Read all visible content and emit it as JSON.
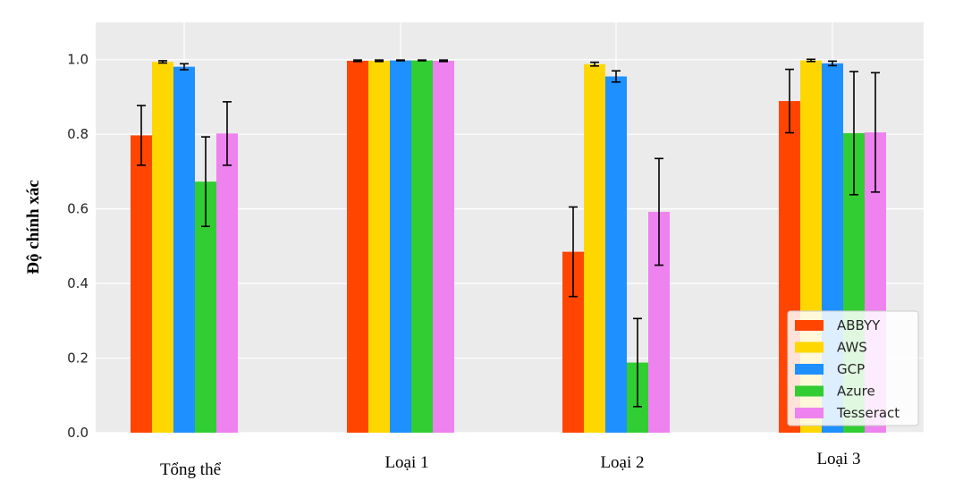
{
  "chart_data": {
    "type": "bar",
    "title": "",
    "xlabel": "",
    "ylabel": "Độ chính xác",
    "categories": [
      "Tổng thể",
      "Loại 1",
      "Loại 2",
      "Loại 3"
    ],
    "ylim": [
      0,
      1.1
    ],
    "yticks": [
      "0.0",
      "0.2",
      "0.4",
      "0.6",
      "0.8",
      "1.0"
    ],
    "grid": true,
    "legend_position": "bottom-right",
    "series": [
      {
        "name": "ABBYY",
        "color": "#ff4500",
        "values": [
          0.797,
          0.997,
          0.485,
          0.889
        ],
        "errors": [
          0.08,
          0.002,
          0.12,
          0.085
        ]
      },
      {
        "name": "AWS",
        "color": "#ffd700",
        "values": [
          0.994,
          0.997,
          0.988,
          0.998
        ],
        "errors": [
          0.003,
          0.002,
          0.005,
          0.003
        ]
      },
      {
        "name": "GCP",
        "color": "#1e90ff",
        "values": [
          0.981,
          0.998,
          0.955,
          0.99
        ],
        "errors": [
          0.008,
          0.001,
          0.015,
          0.006
        ]
      },
      {
        "name": "Azure",
        "color": "#32cd32",
        "values": [
          0.673,
          0.998,
          0.188,
          0.803
        ],
        "errors": [
          0.12,
          0.001,
          0.118,
          0.165
        ]
      },
      {
        "name": "Tesseract",
        "color": "#ee82ee",
        "values": [
          0.802,
          0.997,
          0.592,
          0.805
        ],
        "errors": [
          0.085,
          0.002,
          0.143,
          0.16
        ]
      }
    ]
  }
}
